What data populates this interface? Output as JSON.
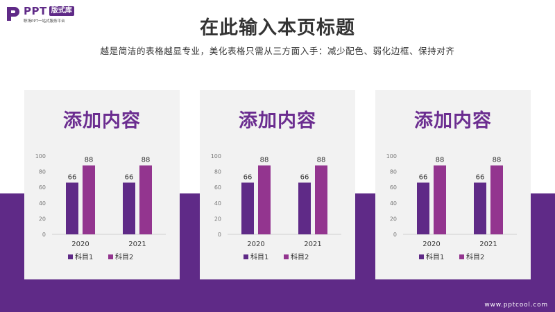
{
  "logo": {
    "text": "PPT",
    "badge": "版式库",
    "tagline": "职场PPT一站式服务平台"
  },
  "slide": {
    "title": "在此输入本页标题",
    "subtitle": "越是简洁的表格越显专业，美化表格只需从三方面入手：减少配色、弱化边框、保持对齐"
  },
  "cards": [
    {
      "heading": "添加内容"
    },
    {
      "heading": "添加内容"
    },
    {
      "heading": "添加内容"
    }
  ],
  "chart_data": [
    {
      "type": "bar",
      "categories": [
        "2020",
        "2021"
      ],
      "series": [
        {
          "name": "科目1",
          "values": [
            66,
            66
          ],
          "color": "#5f2a87"
        },
        {
          "name": "科目2",
          "values": [
            88,
            88
          ],
          "color": "#93358f"
        }
      ],
      "ylim": [
        0,
        100
      ],
      "yticks": [
        0,
        20,
        40,
        60,
        80,
        100
      ],
      "legend": "bottom",
      "grid": false
    },
    {
      "type": "bar",
      "categories": [
        "2020",
        "2021"
      ],
      "series": [
        {
          "name": "科目1",
          "values": [
            66,
            66
          ],
          "color": "#5f2a87"
        },
        {
          "name": "科目2",
          "values": [
            88,
            88
          ],
          "color": "#93358f"
        }
      ],
      "ylim": [
        0,
        100
      ],
      "yticks": [
        0,
        20,
        40,
        60,
        80,
        100
      ],
      "legend": "bottom",
      "grid": false
    },
    {
      "type": "bar",
      "categories": [
        "2020",
        "2021"
      ],
      "series": [
        {
          "name": "科目1",
          "values": [
            66,
            66
          ],
          "color": "#5f2a87"
        },
        {
          "name": "科目2",
          "values": [
            88,
            88
          ],
          "color": "#93358f"
        }
      ],
      "ylim": [
        0,
        100
      ],
      "yticks": [
        0,
        20,
        40,
        60,
        80,
        100
      ],
      "legend": "bottom",
      "grid": false
    }
  ],
  "footer": {
    "url": "www.pptcool.com"
  },
  "colors": {
    "accent": "#5f2a87",
    "accent2": "#93358f",
    "card_bg": "#f2f2f2"
  }
}
